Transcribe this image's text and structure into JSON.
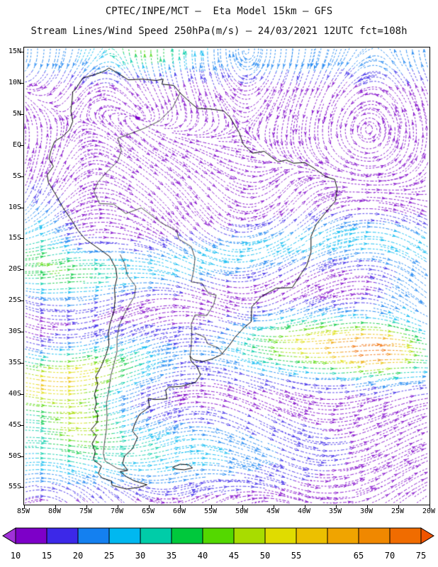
{
  "header": {
    "title_line1": "CPTEC/INPE/MCT —  Eta Model 15km — GFS",
    "title_line2": "Stream Lines/Wind Speed 250hPa(m/s) — 24/03/2021 12UTC fct=108h"
  },
  "chart_data": {
    "type": "streamline-map",
    "title": "Stream Lines/Wind Speed 250hPa(m/s)",
    "institution": "CPTEC/INPE/MCT",
    "model": "Eta Model 15km",
    "driving_model": "GFS",
    "valid_date": "24/03/2021",
    "valid_time": "12UTC",
    "forecast": "fct=108h",
    "level_hPa": 250,
    "units": "m/s",
    "x_axis": {
      "ticks": [
        "85W",
        "80W",
        "75W",
        "70W",
        "65W",
        "60W",
        "55W",
        "50W",
        "45W",
        "40W",
        "35W",
        "30W",
        "25W",
        "20W"
      ]
    },
    "y_axis": {
      "ticks": [
        "15N",
        "10N",
        "5N",
        "EQ",
        "5S",
        "10S",
        "15S",
        "20S",
        "25S",
        "30S",
        "35S",
        "40S",
        "45S",
        "50S",
        "55S"
      ]
    },
    "colorbar": {
      "tick_labels": [
        "10",
        "15",
        "20",
        "25",
        "30",
        "35",
        "40",
        "45",
        "50",
        "55",
        "65",
        "70",
        "75"
      ],
      "boundary_values": [
        10,
        15,
        20,
        25,
        30,
        35,
        40,
        45,
        50,
        55,
        60,
        65,
        70,
        75
      ],
      "segment_colors": [
        "#7D00C8",
        "#3C28E8",
        "#1480F0",
        "#00B8F0",
        "#00CCA8",
        "#00C83C",
        "#54D800",
        "#A8DC00",
        "#E0DC00",
        "#ECC000",
        "#F0A400",
        "#F08800",
        "#F06C00"
      ],
      "arrow_left_color": "#A030D8",
      "arrow_right_color": "#F05400"
    }
  },
  "map": {
    "coastline": [
      [
        -77.2,
        8.6
      ],
      [
        -76.8,
        8.9
      ],
      [
        -75.6,
        10.8
      ],
      [
        -74.8,
        11.0
      ],
      [
        -72.3,
        11.8
      ],
      [
        -71.4,
        12.4
      ],
      [
        -70.0,
        11.6
      ],
      [
        -68.3,
        10.5
      ],
      [
        -66.1,
        10.6
      ],
      [
        -63.8,
        10.4
      ],
      [
        -62.7,
        10.6
      ],
      [
        -62.9,
        9.8
      ],
      [
        -61.0,
        9.6
      ],
      [
        -60.0,
        8.4
      ],
      [
        -58.5,
        7.0
      ],
      [
        -57.2,
        5.9
      ],
      [
        -55.1,
        5.8
      ],
      [
        -53.0,
        5.5
      ],
      [
        -52.0,
        4.5
      ],
      [
        -50.5,
        2.0
      ],
      [
        -49.9,
        0.2
      ],
      [
        -48.4,
        -1.3
      ],
      [
        -46.5,
        -1.0
      ],
      [
        -44.3,
        -2.7
      ],
      [
        -43.0,
        -2.4
      ],
      [
        -41.8,
        -2.9
      ],
      [
        -40.0,
        -2.8
      ],
      [
        -38.5,
        -3.7
      ],
      [
        -36.6,
        -5.1
      ],
      [
        -35.2,
        -5.5
      ],
      [
        -34.8,
        -7.0
      ],
      [
        -35.1,
        -9.0
      ],
      [
        -36.4,
        -10.5
      ],
      [
        -38.2,
        -12.8
      ],
      [
        -39.0,
        -14.7
      ],
      [
        -39.0,
        -17.2
      ],
      [
        -39.7,
        -19.4
      ],
      [
        -40.8,
        -21.0
      ],
      [
        -42.0,
        -22.9
      ],
      [
        -44.6,
        -23.0
      ],
      [
        -46.9,
        -24.3
      ],
      [
        -48.5,
        -26.0
      ],
      [
        -48.6,
        -28.4
      ],
      [
        -49.7,
        -29.3
      ],
      [
        -51.2,
        -30.9
      ],
      [
        -52.1,
        -32.2
      ],
      [
        -53.4,
        -33.7
      ],
      [
        -54.9,
        -34.4
      ],
      [
        -56.4,
        -34.8
      ],
      [
        -57.9,
        -34.5
      ],
      [
        -58.4,
        -33.9
      ],
      [
        -58.2,
        -34.8
      ],
      [
        -57.3,
        -35.6
      ],
      [
        -56.7,
        -36.9
      ],
      [
        -57.5,
        -38.1
      ],
      [
        -59.8,
        -38.8
      ],
      [
        -61.8,
        -38.9
      ],
      [
        -62.3,
        -39.4
      ],
      [
        -62.1,
        -40.8
      ],
      [
        -64.1,
        -40.9
      ],
      [
        -65.1,
        -40.7
      ],
      [
        -64.9,
        -42.1
      ],
      [
        -66.5,
        -43.3
      ],
      [
        -67.3,
        -44.9
      ],
      [
        -67.6,
        -46.0
      ],
      [
        -66.8,
        -47.0
      ],
      [
        -67.6,
        -48.8
      ],
      [
        -68.9,
        -50.0
      ],
      [
        -69.2,
        -51.2
      ],
      [
        -68.4,
        -52.3
      ],
      [
        -69.6,
        -52.5
      ],
      [
        -68.6,
        -53.3
      ],
      [
        -67.3,
        -54.0
      ],
      [
        -65.3,
        -54.6
      ],
      [
        -66.5,
        -55.0
      ],
      [
        -68.6,
        -55.3
      ],
      [
        -70.9,
        -54.7
      ],
      [
        -71.0,
        -54.0
      ],
      [
        -72.5,
        -53.5
      ],
      [
        -73.1,
        -52.8
      ],
      [
        -72.6,
        -51.6
      ],
      [
        -73.9,
        -50.6
      ],
      [
        -73.6,
        -49.3
      ],
      [
        -74.1,
        -48.0
      ],
      [
        -73.4,
        -46.7
      ],
      [
        -74.3,
        -45.8
      ],
      [
        -73.3,
        -44.6
      ],
      [
        -73.2,
        -43.3
      ],
      [
        -73.7,
        -42.5
      ],
      [
        -73.4,
        -41.5
      ],
      [
        -73.7,
        -40.0
      ],
      [
        -73.2,
        -38.5
      ],
      [
        -73.5,
        -37.2
      ],
      [
        -72.6,
        -35.5
      ],
      [
        -71.9,
        -33.8
      ],
      [
        -71.4,
        -32.1
      ],
      [
        -71.5,
        -30.3
      ],
      [
        -71.2,
        -28.6
      ],
      [
        -70.6,
        -26.7
      ],
      [
        -70.4,
        -24.8
      ],
      [
        -70.5,
        -23.0
      ],
      [
        -70.1,
        -21.3
      ],
      [
        -70.3,
        -19.8
      ],
      [
        -71.3,
        -17.9
      ],
      [
        -73.5,
        -16.3
      ],
      [
        -75.2,
        -15.1
      ],
      [
        -76.3,
        -13.8
      ],
      [
        -77.3,
        -12.2
      ],
      [
        -78.8,
        -10.0
      ],
      [
        -79.9,
        -8.0
      ],
      [
        -81.1,
        -6.0
      ],
      [
        -81.3,
        -4.8
      ],
      [
        -80.3,
        -3.4
      ],
      [
        -81.0,
        -2.2
      ],
      [
        -80.7,
        -0.9
      ],
      [
        -80.1,
        0.6
      ],
      [
        -78.8,
        1.4
      ],
      [
        -77.7,
        2.5
      ],
      [
        -77.2,
        3.8
      ],
      [
        -77.5,
        5.5
      ],
      [
        -77.3,
        7.2
      ],
      [
        -77.2,
        8.6
      ]
    ],
    "falkland_islands": [
      [
        -61.2,
        -51.8
      ],
      [
        -60.0,
        -51.3
      ],
      [
        -58.6,
        -51.4
      ],
      [
        -58.0,
        -51.9
      ],
      [
        -59.3,
        -52.2
      ],
      [
        -60.6,
        -52.1
      ],
      [
        -61.2,
        -51.8
      ]
    ],
    "borders": [
      [
        [
          -60.0,
          8.4
        ],
        [
          -61.2,
          6.0
        ],
        [
          -63.3,
          3.9
        ],
        [
          -65.5,
          2.8
        ],
        [
          -67.8,
          1.9
        ],
        [
          -70.0,
          1.1
        ],
        [
          -69.4,
          -0.9
        ],
        [
          -70.0,
          -2.6
        ],
        [
          -71.8,
          -4.4
        ],
        [
          -73.2,
          -6.0
        ],
        [
          -73.8,
          -7.5
        ],
        [
          -72.9,
          -9.4
        ],
        [
          -70.6,
          -9.5
        ],
        [
          -68.7,
          -11.0
        ],
        [
          -66.2,
          -10.1
        ],
        [
          -63.0,
          -12.5
        ],
        [
          -60.5,
          -13.8
        ],
        [
          -60.2,
          -15.1
        ],
        [
          -58.2,
          -16.3
        ],
        [
          -57.6,
          -18.2
        ],
        [
          -57.8,
          -20.1
        ],
        [
          -58.2,
          -22.0
        ],
        [
          -56.5,
          -22.2
        ],
        [
          -55.4,
          -23.9
        ],
        [
          -54.2,
          -24.1
        ],
        [
          -54.6,
          -25.6
        ],
        [
          -55.7,
          -27.4
        ],
        [
          -57.6,
          -27.3
        ],
        [
          -58.2,
          -28.8
        ],
        [
          -58.1,
          -30.2
        ],
        [
          -58.2,
          -32.4
        ],
        [
          -58.4,
          -34.0
        ]
      ],
      [
        [
          -69.6,
          -17.6
        ],
        [
          -68.9,
          -19.0
        ],
        [
          -68.4,
          -21.0
        ],
        [
          -67.1,
          -22.7
        ],
        [
          -67.3,
          -24.3
        ],
        [
          -68.6,
          -26.5
        ],
        [
          -69.7,
          -28.8
        ],
        [
          -70.1,
          -31.0
        ],
        [
          -70.1,
          -33.2
        ],
        [
          -70.6,
          -35.2
        ],
        [
          -71.1,
          -37.1
        ],
        [
          -71.4,
          -39.3
        ],
        [
          -71.8,
          -41.5
        ],
        [
          -71.7,
          -43.6
        ],
        [
          -71.8,
          -45.7
        ],
        [
          -72.1,
          -47.8
        ],
        [
          -72.3,
          -49.6
        ],
        [
          -72.0,
          -50.8
        ],
        [
          -70.0,
          -52.0
        ],
        [
          -68.4,
          -52.3
        ]
      ],
      [
        [
          -57.6,
          -30.2
        ],
        [
          -56.0,
          -30.9
        ],
        [
          -55.6,
          -31.9
        ],
        [
          -53.9,
          -32.6
        ],
        [
          -53.1,
          -33.7
        ]
      ]
    ]
  }
}
